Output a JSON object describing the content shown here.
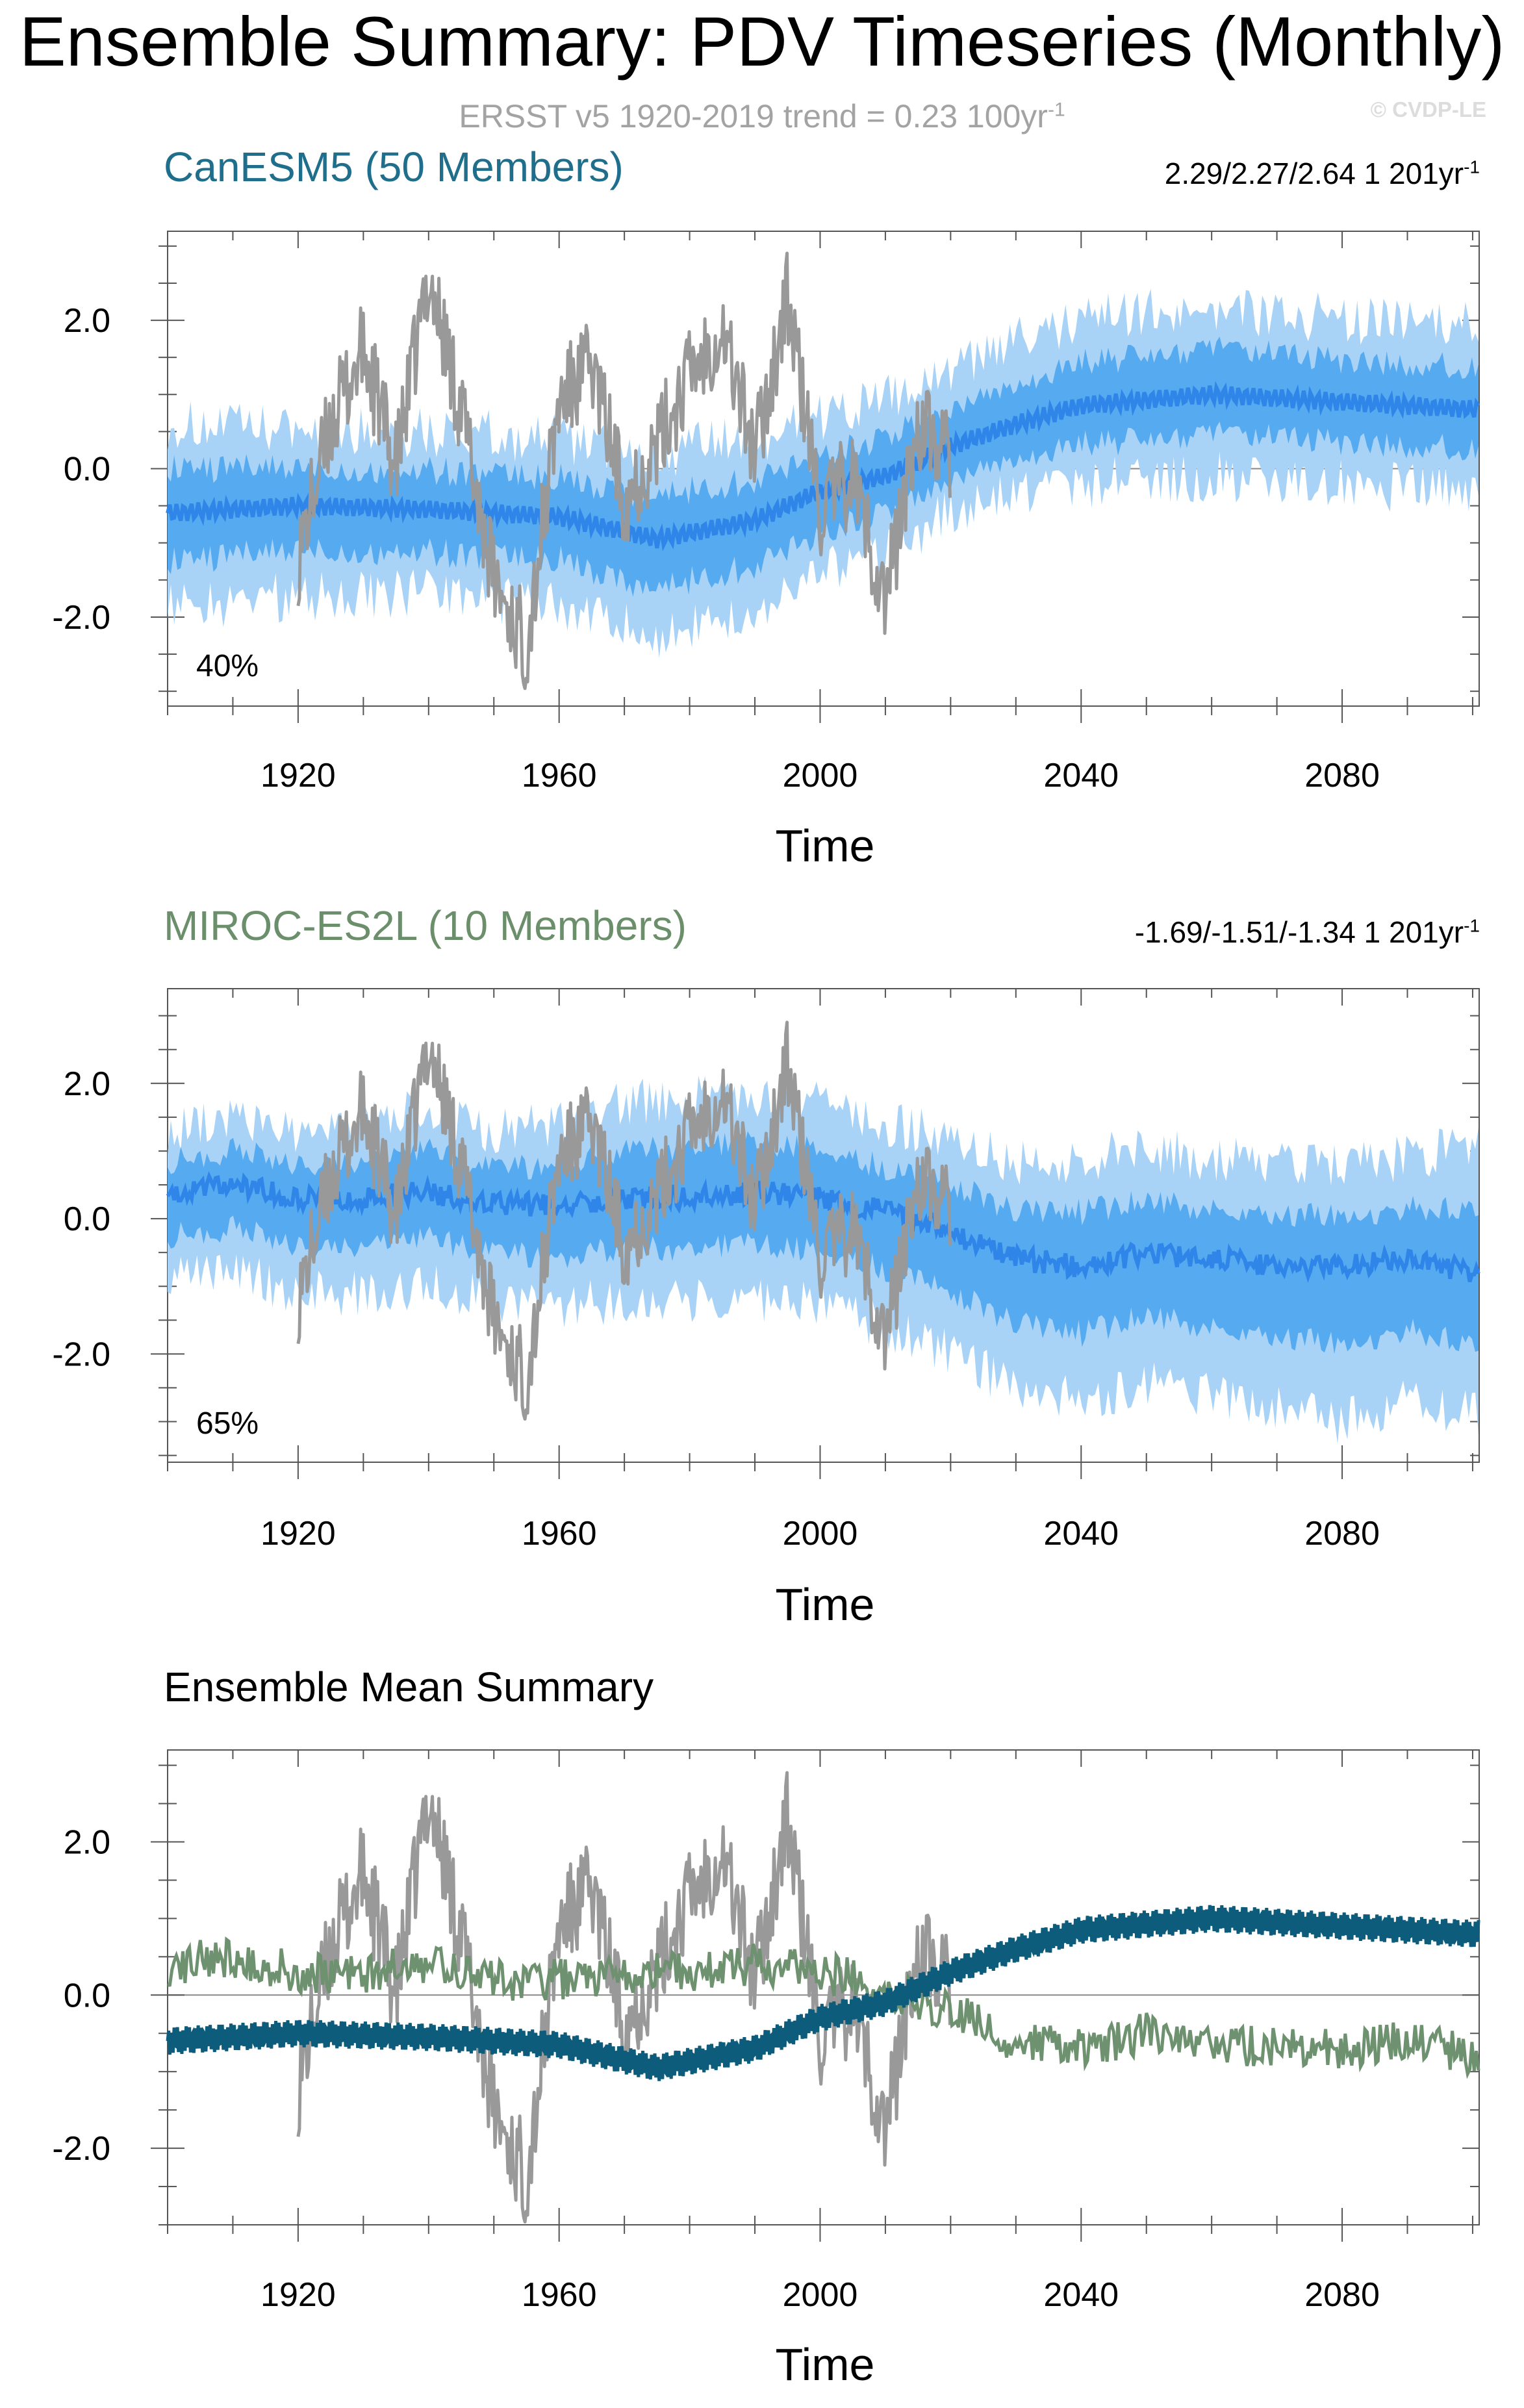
{
  "title": "Ensemble Summary: PDV Timeseries (Monthly)",
  "subtitle": "ERSST v5 1920-2019 trend = 0.23 100yr",
  "subtitle_sup": "-1",
  "copyright": "© CVDP-LE",
  "colors": {
    "observations": "#999999",
    "canesm5_title": "#1f6e8c",
    "miroc_title": "#6b8f6b",
    "ensemble_light": "#a8d3f7",
    "ensemble_mid": "#55aaf0",
    "ensemble_mean": "#2f86e8",
    "canesm5_mean_line": "#0d5c7b",
    "miroc_mean_line": "#6e9170"
  },
  "panels": [
    {
      "title": "CanESM5 (50 Members)",
      "trend_text": "2.29/2.27/2.64 1 201yr",
      "trend_sup": "-1",
      "percent": "40%",
      "xlabel": "Time"
    },
    {
      "title": "MIROC-ES2L (10 Members)",
      "trend_text": "-1.69/-1.51/-1.34 1 201yr",
      "trend_sup": "-1",
      "percent": "65%",
      "xlabel": "Time"
    },
    {
      "title": "Ensemble Mean Summary",
      "xlabel": "Time"
    }
  ],
  "chart_data": [
    {
      "type": "area",
      "title": "CanESM5 (50 Members)",
      "xlabel": "Time",
      "ylabel": "",
      "xlim": [
        1900,
        2101
      ],
      "ylim": [
        -3.2,
        3.2
      ],
      "xticks": [
        1920,
        1960,
        2000,
        2040,
        2080
      ],
      "yticks": [
        2.0,
        0.0,
        -2.0
      ],
      "ytick_labels": [
        "2.0",
        "0.0",
        "-2.0"
      ],
      "series": [
        {
          "name": "ERSST v5 observations",
          "x": [
            1920,
            1925,
            1930,
            1935,
            1940,
            1945,
            1950,
            1955,
            1960,
            1965,
            1970,
            1975,
            1980,
            1985,
            1990,
            1995,
            2000,
            2005,
            2010,
            2015,
            2019
          ],
          "values": [
            -1.2,
            0.6,
            1.6,
            0.0,
            2.6,
            0.8,
            -1.5,
            -2.4,
            0.9,
            1.4,
            -0.4,
            0.3,
            1.3,
            1.9,
            0.2,
            2.3,
            -0.6,
            -0.1,
            -1.8,
            0.6,
            0.2
          ]
        },
        {
          "name": "ensemble mean",
          "x": [
            1900,
            1920,
            1940,
            1960,
            1975,
            1990,
            2000,
            2010,
            2020,
            2030,
            2040,
            2060,
            2080,
            2100
          ],
          "values": [
            -0.6,
            -0.5,
            -0.55,
            -0.65,
            -0.95,
            -0.7,
            -0.3,
            -0.1,
            0.3,
            0.6,
            0.85,
            1.0,
            0.9,
            0.8
          ]
        },
        {
          "name": "ensemble range",
          "x": [
            1900,
            1920,
            1940,
            1960,
            1975,
            1990,
            2000,
            2010,
            2020,
            2030,
            2040,
            2060,
            2080,
            2100
          ],
          "lower": [
            -1.9,
            -1.7,
            -1.7,
            -1.8,
            -2.3,
            -1.9,
            -1.4,
            -1.1,
            -0.6,
            -0.3,
            -0.2,
            -0.1,
            -0.2,
            -0.3
          ],
          "upper": [
            0.6,
            0.5,
            0.5,
            0.4,
            0.2,
            0.4,
            0.7,
            0.9,
            1.3,
            1.7,
            2.0,
            2.2,
            2.0,
            1.9
          ]
        }
      ],
      "annotations": [
        "40%",
        "2.29/2.27/2.64 1 201yr-1"
      ]
    },
    {
      "type": "area",
      "title": "MIROC-ES2L (10 Members)",
      "xlabel": "Time",
      "ylabel": "",
      "xlim": [
        1900,
        2101
      ],
      "ylim": [
        -3.6,
        3.4
      ],
      "xticks": [
        1920,
        1960,
        2000,
        2040,
        2080
      ],
      "yticks": [
        2.0,
        0.0,
        -2.0
      ],
      "ytick_labels": [
        "2.0",
        "0.0",
        "-2.0"
      ],
      "series": [
        {
          "name": "ERSST v5 observations",
          "x": [
            1920,
            1925,
            1930,
            1935,
            1940,
            1945,
            1950,
            1955,
            1960,
            1965,
            1970,
            1975,
            1980,
            1985,
            1990,
            1995,
            2000,
            2005,
            2010,
            2015,
            2019
          ],
          "values": [
            -1.2,
            0.6,
            1.6,
            0.0,
            2.6,
            0.8,
            -1.5,
            -2.4,
            0.9,
            1.4,
            -0.4,
            0.3,
            1.3,
            1.9,
            0.2,
            2.3,
            -0.6,
            -0.1,
            -1.8,
            0.6,
            0.2
          ]
        },
        {
          "name": "ensemble mean",
          "x": [
            1900,
            1910,
            1920,
            1930,
            1940,
            1950,
            1960,
            1970,
            1980,
            1990,
            2000,
            2010,
            2020,
            2030,
            2040,
            2050,
            2060,
            2070,
            2080,
            2090,
            2100
          ],
          "values": [
            0.4,
            0.5,
            0.3,
            0.3,
            0.4,
            0.2,
            0.2,
            0.3,
            0.3,
            0.4,
            0.3,
            0.1,
            -0.2,
            -0.6,
            -0.7,
            -0.5,
            -0.6,
            -0.7,
            -0.7,
            -0.6,
            -0.8
          ]
        },
        {
          "name": "ensemble range",
          "x": [
            1900,
            1910,
            1920,
            1930,
            1940,
            1950,
            1960,
            1970,
            1980,
            1990,
            2000,
            2010,
            2020,
            2030,
            2040,
            2050,
            2060,
            2070,
            2080,
            2090,
            2100
          ],
          "lower": [
            -0.9,
            -0.8,
            -1.1,
            -1.1,
            -1.0,
            -1.2,
            -1.3,
            -1.2,
            -1.2,
            -1.2,
            -1.3,
            -1.6,
            -2.0,
            -2.5,
            -2.7,
            -2.4,
            -2.6,
            -2.8,
            -3.0,
            -2.7,
            -2.9
          ],
          "upper": [
            1.3,
            1.5,
            1.3,
            1.4,
            1.6,
            1.3,
            1.4,
            1.7,
            1.8,
            1.8,
            1.7,
            1.4,
            1.2,
            0.8,
            0.9,
            1.0,
            0.9,
            0.8,
            0.8,
            0.9,
            1.1
          ]
        }
      ],
      "annotations": [
        "65%",
        "-1.69/-1.51/-1.34 1 201yr-1"
      ]
    },
    {
      "type": "line",
      "title": "Ensemble Mean Summary",
      "xlabel": "Time",
      "ylabel": "",
      "xlim": [
        1900,
        2101
      ],
      "ylim": [
        -3.0,
        3.2
      ],
      "xticks": [
        1920,
        1960,
        2000,
        2040,
        2080
      ],
      "yticks": [
        2.0,
        0.0,
        -2.0
      ],
      "ytick_labels": [
        "2.0",
        "0.0",
        "-2.0"
      ],
      "series": [
        {
          "name": "ERSST v5 observations",
          "x": [
            1920,
            1925,
            1930,
            1935,
            1940,
            1945,
            1950,
            1955,
            1960,
            1965,
            1970,
            1975,
            1980,
            1985,
            1990,
            1995,
            2000,
            2005,
            2010,
            2015,
            2019
          ],
          "values": [
            -1.2,
            0.6,
            1.6,
            0.0,
            2.6,
            0.8,
            -1.5,
            -2.4,
            0.9,
            1.4,
            -0.4,
            0.3,
            1.3,
            1.9,
            0.2,
            2.3,
            -0.6,
            -0.1,
            -1.8,
            0.6,
            0.2
          ]
        },
        {
          "name": "MIROC-ES2L ensemble mean",
          "x": [
            1900,
            1910,
            1920,
            1930,
            1940,
            1950,
            1960,
            1970,
            1980,
            1990,
            2000,
            2010,
            2020,
            2030,
            2040,
            2050,
            2060,
            2070,
            2080,
            2090,
            2100
          ],
          "values": [
            0.4,
            0.5,
            0.3,
            0.3,
            0.4,
            0.2,
            0.2,
            0.3,
            0.3,
            0.4,
            0.3,
            0.1,
            -0.2,
            -0.6,
            -0.7,
            -0.5,
            -0.6,
            -0.7,
            -0.7,
            -0.6,
            -0.8
          ]
        },
        {
          "name": "CanESM5 ensemble mean",
          "x": [
            1900,
            1920,
            1940,
            1960,
            1975,
            1990,
            2000,
            2010,
            2020,
            2030,
            2040,
            2060,
            2080,
            2100
          ],
          "values": [
            -0.6,
            -0.5,
            -0.55,
            -0.65,
            -0.95,
            -0.7,
            -0.3,
            -0.1,
            0.3,
            0.6,
            0.85,
            1.0,
            0.9,
            0.8
          ]
        }
      ]
    }
  ]
}
